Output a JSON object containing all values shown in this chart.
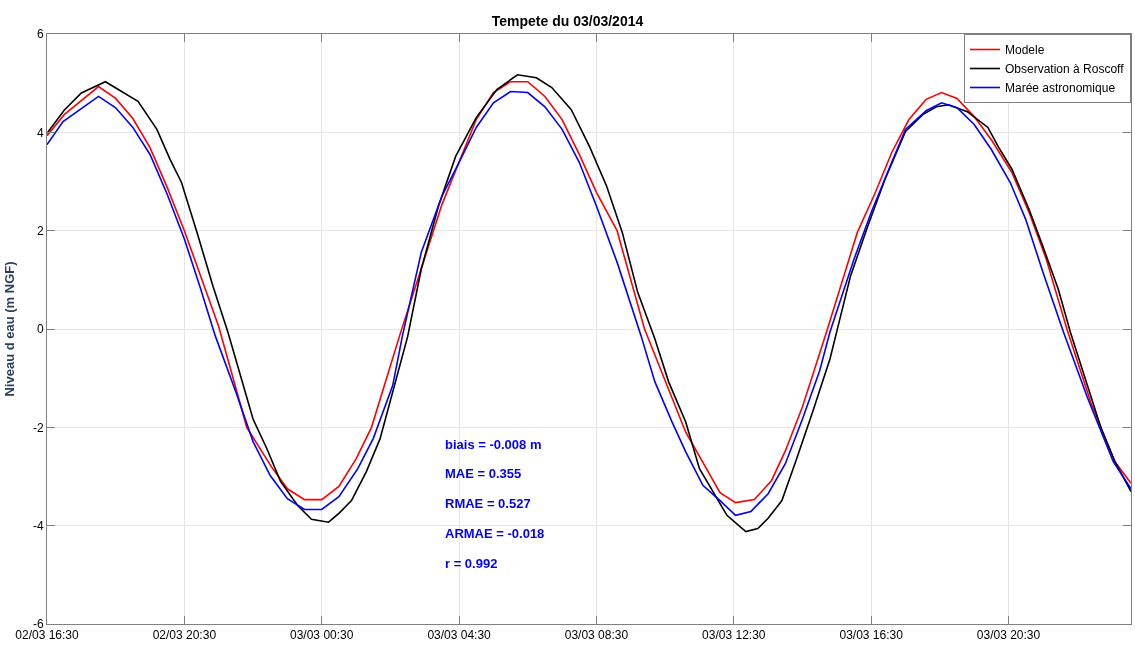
{
  "chart_data": {
    "type": "line",
    "title": "Tempete du 03/03/2014",
    "ylabel": "Niveau d eau (m NGF)",
    "xlim": [
      "2014-03-02T16:30",
      "2014-03-04T00:04"
    ],
    "xticks": [
      {
        "value": "2014-03-02T16:30",
        "label": "02/03 16:30"
      },
      {
        "value": "2014-03-02T20:30",
        "label": "02/03 20:30"
      },
      {
        "value": "2014-03-03T00:30",
        "label": "03/03 00:30"
      },
      {
        "value": "2014-03-03T04:30",
        "label": "03/03 04:30"
      },
      {
        "value": "2014-03-03T08:30",
        "label": "03/03 08:30"
      },
      {
        "value": "2014-03-03T12:30",
        "label": "03/03 12:30"
      },
      {
        "value": "2014-03-03T16:30",
        "label": "03/03 16:30"
      },
      {
        "value": "2014-03-03T20:30",
        "label": "03/03 20:30"
      }
    ],
    "ylim": [
      -6,
      6
    ],
    "yticks": [
      -6,
      -4,
      -2,
      0,
      2,
      4,
      6
    ],
    "grid": true,
    "legend": "top right",
    "line_style": "solid",
    "annotations": [
      "biais = -0.008 m",
      "MAE = 0.355",
      "RMAE = 0.527",
      "ARMAE = -0.018",
      "r = 0.992"
    ],
    "series": [
      {
        "name": "Modele",
        "color": "#ff0000",
        "x": [
          "2014-03-02T16:30",
          "2014-03-02T17:00",
          "2014-03-02T18:00",
          "2014-03-02T18:30",
          "2014-03-02T19:00",
          "2014-03-02T19:30",
          "2014-03-02T20:00",
          "2014-03-02T20:30",
          "2014-03-02T21:30",
          "2014-03-02T22:19",
          "2014-03-02T23:02",
          "2014-03-02T23:30",
          "2014-03-03T00:00",
          "2014-03-03T00:30",
          "2014-03-03T01:00",
          "2014-03-03T01:30",
          "2014-03-03T01:57",
          "2014-03-03T02:46",
          "2014-03-03T04:00",
          "2014-03-03T05:00",
          "2014-03-03T05:30",
          "2014-03-03T06:00",
          "2014-03-03T06:30",
          "2014-03-03T07:00",
          "2014-03-03T07:30",
          "2014-03-03T08:00",
          "2014-03-03T08:30",
          "2014-03-03T09:06",
          "2014-03-03T09:54",
          "2014-03-03T11:06",
          "2014-03-03T12:06",
          "2014-03-03T12:33",
          "2014-03-03T13:06",
          "2014-03-03T13:36",
          "2014-03-03T14:00",
          "2014-03-03T14:30",
          "2014-03-03T15:12",
          "2014-03-03T16:06",
          "2014-03-03T16:36",
          "2014-03-03T17:06",
          "2014-03-03T17:36",
          "2014-03-03T18:06",
          "2014-03-03T18:33",
          "2014-03-03T19:00",
          "2014-03-03T19:30",
          "2014-03-03T20:00",
          "2014-03-03T20:36",
          "2014-03-03T21:06",
          "2014-03-03T21:36",
          "2014-03-03T22:12",
          "2014-03-03T22:54",
          "2014-03-03T23:36",
          "2014-03-04T00:04"
        ],
        "values": [
          3.93,
          4.36,
          4.93,
          4.69,
          4.28,
          3.69,
          2.88,
          2.0,
          0.05,
          -2.0,
          -2.8,
          -3.25,
          -3.47,
          -3.47,
          -3.2,
          -2.64,
          -2.0,
          -0.14,
          2.53,
          4.26,
          4.81,
          5.03,
          5.03,
          4.73,
          4.26,
          3.55,
          2.78,
          2.0,
          0.0,
          -2.1,
          -3.33,
          -3.53,
          -3.47,
          -3.08,
          -2.48,
          -1.58,
          -0.06,
          1.97,
          2.74,
          3.59,
          4.26,
          4.67,
          4.81,
          4.69,
          4.32,
          3.85,
          3.18,
          2.37,
          1.42,
          0.0,
          -1.5,
          -2.7,
          -3.14
        ]
      },
      {
        "name": "Observation à Roscoff",
        "color": "#000000",
        "x": [
          "2014-03-02T16:30",
          "2014-03-02T17:00",
          "2014-03-02T17:30",
          "2014-03-02T18:12",
          "2014-03-02T19:09",
          "2014-03-02T19:42",
          "2014-03-02T20:05",
          "2014-03-02T20:25",
          "2014-03-02T20:52",
          "2014-03-02T21:20",
          "2014-03-02T21:46",
          "2014-03-02T22:30",
          "2014-03-02T22:54",
          "2014-03-02T23:18",
          "2014-03-02T23:48",
          "2014-03-03T00:12",
          "2014-03-03T00:42",
          "2014-03-03T01:00",
          "2014-03-03T01:22",
          "2014-03-03T01:48",
          "2014-03-03T02:12",
          "2014-03-03T03:00",
          "2014-03-03T03:24",
          "2014-03-03T03:54",
          "2014-03-03T04:24",
          "2014-03-03T05:00",
          "2014-03-03T05:36",
          "2014-03-03T06:12",
          "2014-03-03T06:45",
          "2014-03-03T07:12",
          "2014-03-03T07:46",
          "2014-03-03T08:18",
          "2014-03-03T08:48",
          "2014-03-03T09:15",
          "2014-03-03T09:42",
          "2014-03-03T10:12",
          "2014-03-03T10:36",
          "2014-03-03T11:06",
          "2014-03-03T11:30",
          "2014-03-03T12:18",
          "2014-03-03T12:51",
          "2014-03-03T13:12",
          "2014-03-03T13:30",
          "2014-03-03T13:54",
          "2014-03-03T14:18",
          "2014-03-03T14:48",
          "2014-03-03T15:18",
          "2014-03-03T15:28",
          "2014-03-03T15:54",
          "2014-03-03T16:24",
          "2014-03-03T16:54",
          "2014-03-03T17:30",
          "2014-03-03T18:00",
          "2014-03-03T18:24",
          "2014-03-03T18:45",
          "2014-03-03T19:18",
          "2014-03-03T19:54",
          "2014-03-03T20:12",
          "2014-03-03T20:36",
          "2014-03-03T21:06",
          "2014-03-03T21:30",
          "2014-03-03T21:57",
          "2014-03-03T22:18",
          "2014-03-03T23:12",
          "2014-03-03T23:36",
          "2014-03-04T00:04"
        ],
        "values": [
          3.98,
          4.45,
          4.8,
          5.03,
          4.63,
          4.06,
          3.45,
          2.98,
          1.97,
          0.87,
          -0.06,
          -1.83,
          -2.43,
          -3.1,
          -3.59,
          -3.87,
          -3.93,
          -3.75,
          -3.49,
          -2.9,
          -2.23,
          -0.16,
          1.22,
          2.5,
          3.51,
          4.3,
          4.87,
          5.17,
          5.11,
          4.91,
          4.46,
          3.71,
          2.9,
          1.97,
          0.75,
          -0.2,
          -1.07,
          -1.89,
          -2.84,
          -3.79,
          -4.12,
          -4.06,
          -3.85,
          -3.49,
          -2.7,
          -1.68,
          -0.61,
          -0.14,
          1.08,
          2.09,
          3.04,
          4.02,
          4.36,
          4.52,
          4.56,
          4.42,
          4.1,
          3.71,
          3.25,
          2.43,
          1.68,
          0.81,
          -0.06,
          -2.03,
          -2.7,
          -3.31
        ]
      },
      {
        "name": "Marée astronomique",
        "color": "#0000ff",
        "x": [
          "2014-03-02T16:30",
          "2014-03-02T16:58",
          "2014-03-02T18:00",
          "2014-03-02T18:30",
          "2014-03-02T19:00",
          "2014-03-02T19:30",
          "2014-03-02T20:00",
          "2014-03-02T20:30",
          "2014-03-02T20:57",
          "2014-03-02T21:24",
          "2014-03-02T22:00",
          "2014-03-02T22:30",
          "2014-03-02T23:00",
          "2014-03-02T23:30",
          "2014-03-03T00:00",
          "2014-03-03T00:30",
          "2014-03-03T01:00",
          "2014-03-03T01:33",
          "2014-03-03T02:00",
          "2014-03-03T02:34",
          "2014-03-03T02:51",
          "2014-03-03T03:24",
          "2014-03-03T04:00",
          "2014-03-03T04:30",
          "2014-03-03T05:00",
          "2014-03-03T05:30",
          "2014-03-03T06:00",
          "2014-03-03T06:30",
          "2014-03-03T07:00",
          "2014-03-03T07:30",
          "2014-03-03T08:00",
          "2014-03-03T08:30",
          "2014-03-03T09:06",
          "2014-03-03T09:48",
          "2014-03-03T10:12",
          "2014-03-03T10:42",
          "2014-03-03T11:06",
          "2014-03-03T11:36",
          "2014-03-03T12:06",
          "2014-03-03T12:33",
          "2014-03-03T13:00",
          "2014-03-03T13:30",
          "2014-03-03T14:00",
          "2014-03-03T14:30",
          "2014-03-03T15:00",
          "2014-03-03T15:18",
          "2014-03-03T16:00",
          "2014-03-03T16:30",
          "2014-03-03T17:06",
          "2014-03-03T17:30",
          "2014-03-03T18:06",
          "2014-03-03T18:33",
          "2014-03-03T19:00",
          "2014-03-03T19:30",
          "2014-03-03T20:00",
          "2014-03-03T20:33",
          "2014-03-03T21:00",
          "2014-03-03T21:30",
          "2014-03-03T22:06",
          "2014-03-03T22:48",
          "2014-03-03T23:33",
          "2014-03-04T00:04"
        ],
        "values": [
          3.75,
          4.22,
          4.73,
          4.5,
          4.1,
          3.55,
          2.74,
          1.83,
          0.87,
          -0.14,
          -1.28,
          -2.29,
          -2.98,
          -3.45,
          -3.67,
          -3.67,
          -3.41,
          -2.84,
          -2.23,
          -1.15,
          -0.14,
          1.56,
          2.7,
          3.39,
          4.1,
          4.6,
          4.83,
          4.81,
          4.52,
          4.06,
          3.39,
          2.5,
          1.36,
          -0.14,
          -1.07,
          -1.89,
          -2.5,
          -3.18,
          -3.49,
          -3.79,
          -3.71,
          -3.35,
          -2.74,
          -1.83,
          -0.85,
          -0.06,
          1.42,
          2.37,
          3.39,
          4.06,
          4.44,
          4.6,
          4.5,
          4.16,
          3.65,
          2.98,
          2.23,
          1.16,
          -0.06,
          -1.4,
          -2.7,
          -3.25
        ]
      }
    ]
  }
}
